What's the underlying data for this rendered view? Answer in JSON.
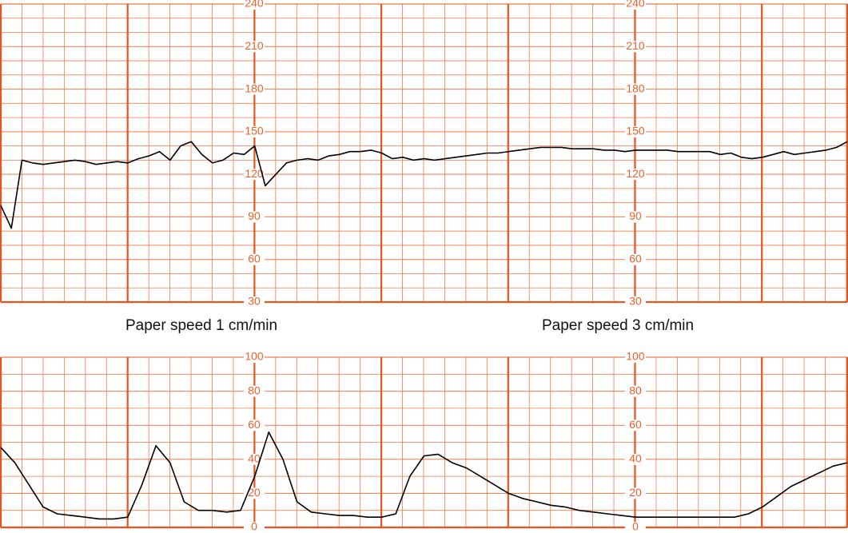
{
  "chart_data": [
    {
      "type": "line",
      "color": "#000000",
      "grid_color": "#f07a4a",
      "ylim": [
        30,
        240
      ],
      "yticks": [
        30,
        60,
        90,
        120,
        150,
        180,
        210,
        240
      ],
      "annotations": [
        "Paper speed 1 cm/min",
        "Paper speed 3 cm/min"
      ],
      "values": [
        98,
        82,
        130,
        128,
        127,
        128,
        129,
        130,
        129,
        127,
        128,
        129,
        128,
        131,
        133,
        136,
        130,
        140,
        143,
        134,
        128,
        130,
        135,
        134,
        140,
        112,
        120,
        128,
        130,
        131,
        130,
        133,
        134,
        136,
        136,
        137,
        135,
        131,
        132,
        130,
        131,
        130,
        131,
        132,
        133,
        134,
        135,
        135,
        136,
        137,
        138,
        139,
        139,
        139,
        138,
        138,
        138,
        137,
        137,
        136,
        137,
        137,
        137,
        137,
        136,
        136,
        136,
        136,
        134,
        135,
        132,
        131,
        132,
        134,
        136,
        134,
        135,
        136,
        137,
        139,
        143
      ]
    },
    {
      "type": "line",
      "color": "#000000",
      "grid_color": "#f07a4a",
      "ylim": [
        0,
        100
      ],
      "yticks": [
        0,
        20,
        40,
        60,
        80,
        100
      ],
      "values": [
        47,
        38,
        25,
        12,
        8,
        7,
        6,
        5,
        5,
        6,
        25,
        48,
        38,
        15,
        10,
        10,
        9,
        10,
        30,
        56,
        40,
        15,
        9,
        8,
        7,
        7,
        6,
        6,
        8,
        30,
        42,
        43,
        38,
        35,
        30,
        25,
        20,
        17,
        15,
        13,
        12,
        10,
        9,
        8,
        7,
        6,
        6,
        6,
        6,
        6,
        6,
        6,
        6,
        8,
        12,
        18,
        24,
        28,
        32,
        36,
        38
      ]
    }
  ]
}
